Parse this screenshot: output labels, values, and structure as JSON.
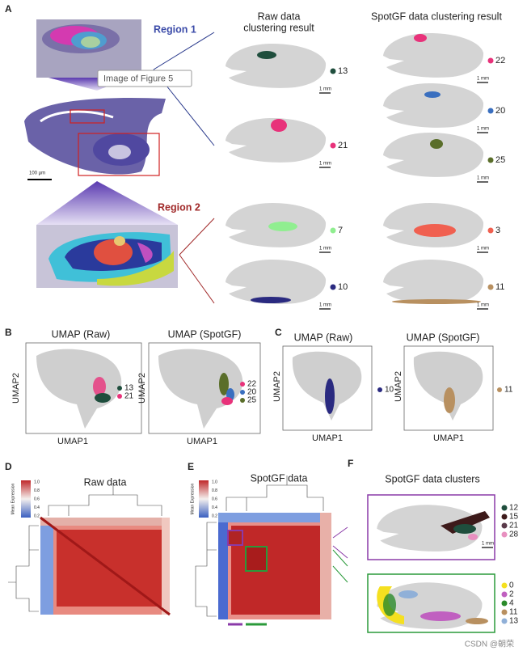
{
  "panel_letters": [
    "A",
    "B",
    "C",
    "D",
    "E",
    "F"
  ],
  "panel_a": {
    "region_1": "Region 1",
    "region_2": "Region 2",
    "tooltip": "Image of Figure 5",
    "scale_bar": "100 μm",
    "raw_heading": [
      "Raw data",
      "clustering result"
    ],
    "spotgf_heading": "SpotGF data clustering result",
    "mm_bar": "1 mm",
    "raw_clusters": [
      {
        "label": 13,
        "color": "#1f4e3d"
      },
      {
        "label": 21,
        "color": "#e8327a"
      },
      {
        "label": 7,
        "color": "#90ee90"
      },
      {
        "label": 10,
        "color": "#2a2a80"
      }
    ],
    "spotgf_clusters": [
      {
        "label": 22,
        "color": "#e8327a"
      },
      {
        "label": 20,
        "color": "#3a6fbf"
      },
      {
        "label": 25,
        "color": "#5a6e2a"
      },
      {
        "label": 3,
        "color": "#f06050"
      },
      {
        "label": 11,
        "color": "#b89060"
      }
    ]
  },
  "panel_b": {
    "title_raw": "UMAP (Raw)",
    "title_spotgf": "UMAP (SpotGF)",
    "y_label": "UMAP2",
    "x_label": "UMAP1",
    "raw_legend": [
      {
        "label": 13,
        "color": "#1f4e3d"
      },
      {
        "label": 21,
        "color": "#e8327a"
      }
    ],
    "spotgf_legend": [
      {
        "label": 22,
        "color": "#e8327a"
      },
      {
        "label": 20,
        "color": "#3a6fbf"
      },
      {
        "label": 25,
        "color": "#5a6e2a"
      }
    ]
  },
  "panel_c": {
    "title_raw": "UMAP (Raw)",
    "title_spotgf": "UMAP (SpotGF)",
    "y_label": "UMAP2",
    "x_label": "UMAP1",
    "raw_legend": [
      {
        "label": 10,
        "color": "#2a2a80"
      }
    ],
    "spotgf_legend": [
      {
        "label": 11,
        "color": "#b89060"
      }
    ]
  },
  "panel_d": {
    "title": "Raw data",
    "colorbar_label": "Mean Expression",
    "colorbar_ticks": [
      "1.0",
      "0.8",
      "0.6",
      "0.4",
      "0.2"
    ]
  },
  "panel_e": {
    "title": "SpotGF data",
    "colorbar_label": "Mean Expression",
    "colorbar_ticks": [
      "1.0",
      "0.8",
      "0.6",
      "0.4",
      "0.2"
    ]
  },
  "panel_f": {
    "title": "SpotGF data clusters",
    "mm_bar": "1 mm",
    "top_legend": [
      {
        "label": 12,
        "color": "#1f4e3d"
      },
      {
        "label": 15,
        "color": "#3d1a1a"
      },
      {
        "label": 21,
        "color": "#5a3a4a"
      },
      {
        "label": 28,
        "color": "#e890c0"
      }
    ],
    "bottom_legend": [
      {
        "label": 0,
        "color": "#f5e020"
      },
      {
        "label": 2,
        "color": "#c060c0"
      },
      {
        "label": 4,
        "color": "#2a8a2a"
      },
      {
        "label": 11,
        "color": "#b89060"
      },
      {
        "label": 13,
        "color": "#90b0d8"
      }
    ]
  },
  "watermark": "CSDN @朝荣"
}
